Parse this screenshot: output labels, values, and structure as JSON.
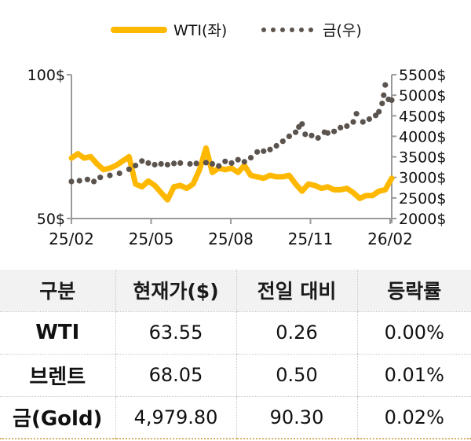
{
  "legend": {
    "wti_label": "WTI(좌)",
    "gold_label": "금(우)"
  },
  "colors": {
    "wti": "#FFB800",
    "gold": "#5b534d",
    "axis": "#9a9a9a",
    "header_bg": "#f2f2f2",
    "table_bottom_border": "#d8b26a"
  },
  "chart_data": {
    "type": "line",
    "title": "",
    "x_tick_labels": [
      "25/02",
      "25/05",
      "25/08",
      "25/11",
      "26/02"
    ],
    "left_axis": {
      "label": "WTI",
      "ticks": [
        "100$",
        "50$"
      ],
      "ylim": [
        50,
        100
      ]
    },
    "right_axis": {
      "label": "금",
      "ticks": [
        "5500$",
        "5000$",
        "4500$",
        "4000$",
        "3500$",
        "3000$",
        "2500$",
        "2000$"
      ],
      "ylim": [
        2000,
        5500
      ]
    },
    "legend_position": "top",
    "grid": false,
    "series": [
      {
        "name": "WTI(좌)",
        "axis": "left",
        "style": "solid",
        "x": [
          0,
          0.02,
          0.04,
          0.06,
          0.08,
          0.1,
          0.12,
          0.14,
          0.16,
          0.18,
          0.2,
          0.22,
          0.24,
          0.26,
          0.28,
          0.3,
          0.32,
          0.34,
          0.36,
          0.38,
          0.4,
          0.42,
          0.44,
          0.46,
          0.48,
          0.5,
          0.52,
          0.54,
          0.56,
          0.58,
          0.6,
          0.62,
          0.64,
          0.66,
          0.68,
          0.7,
          0.72,
          0.74,
          0.76,
          0.78,
          0.8,
          0.82,
          0.84,
          0.86,
          0.88,
          0.9,
          0.92,
          0.94,
          0.96,
          0.98,
          1.0
        ],
        "values": [
          71,
          72.5,
          71,
          71.5,
          69,
          67,
          67.5,
          68.5,
          70,
          71.5,
          62,
          61,
          63,
          61.5,
          59,
          56.5,
          61,
          61.5,
          60.5,
          62,
          67,
          74.5,
          66,
          67.5,
          67,
          67.5,
          66,
          68.5,
          65,
          64.5,
          64,
          65,
          64.5,
          64.5,
          65,
          62,
          59.5,
          62,
          61.5,
          60.5,
          61,
          60,
          60,
          60.5,
          59,
          57,
          58,
          58,
          59.5,
          60,
          64
        ]
      },
      {
        "name": "금(우)",
        "axis": "right",
        "style": "dotted",
        "x": [
          0,
          0.025,
          0.05,
          0.07,
          0.09,
          0.12,
          0.15,
          0.18,
          0.2,
          0.22,
          0.24,
          0.26,
          0.28,
          0.3,
          0.32,
          0.34,
          0.37,
          0.39,
          0.42,
          0.44,
          0.46,
          0.48,
          0.5,
          0.52,
          0.54,
          0.56,
          0.58,
          0.6,
          0.62,
          0.64,
          0.66,
          0.68,
          0.7,
          0.71,
          0.72,
          0.73,
          0.75,
          0.77,
          0.79,
          0.8,
          0.82,
          0.84,
          0.86,
          0.88,
          0.89,
          0.91,
          0.93,
          0.95,
          0.96,
          0.97,
          0.975,
          0.98,
          0.99,
          1.0
        ],
        "values": [
          2900,
          2920,
          2950,
          2900,
          3000,
          3050,
          3100,
          3200,
          3290,
          3400,
          3350,
          3310,
          3330,
          3310,
          3340,
          3350,
          3330,
          3340,
          3360,
          3330,
          3280,
          3390,
          3350,
          3430,
          3380,
          3480,
          3620,
          3640,
          3680,
          3770,
          3880,
          4000,
          4100,
          4230,
          4300,
          4050,
          4020,
          3960,
          4100,
          4080,
          4120,
          4210,
          4250,
          4350,
          4550,
          4350,
          4420,
          4510,
          4600,
          4800,
          5000,
          5250,
          4900,
          4880
        ]
      }
    ]
  },
  "table": {
    "headers": [
      "구분",
      "현재가($)",
      "전일 대비",
      "등락률"
    ],
    "rows": [
      {
        "name": "WTI",
        "price": "63.55",
        "change": "0.26",
        "rate": "0.00%"
      },
      {
        "name": "브렌트",
        "price": "68.05",
        "change": "0.50",
        "rate": "0.01%"
      },
      {
        "name": "금(Gold)",
        "price": "4,979.80",
        "change": "90.30",
        "rate": "0.02%"
      }
    ]
  }
}
